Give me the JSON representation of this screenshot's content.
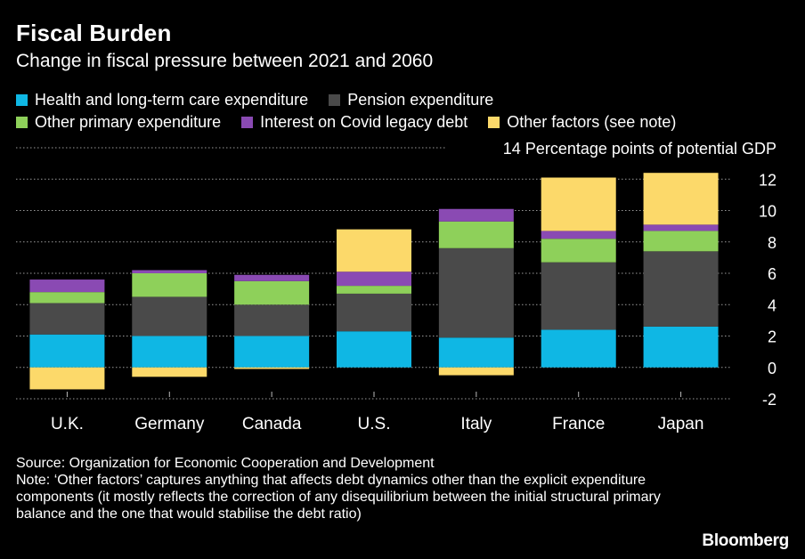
{
  "header": {
    "title": "Fiscal Burden",
    "subtitle": "Change in fiscal pressure between 2021 and 2060"
  },
  "legend": {
    "rows": [
      [
        {
          "label": "Health and long-term care expenditure",
          "color": "#0fb7e4"
        },
        {
          "label": "Pension expenditure",
          "color": "#4a4a4a"
        }
      ],
      [
        {
          "label": "Other primary expenditure",
          "color": "#8ed05a"
        },
        {
          "label": "Interest on Covid legacy debt",
          "color": "#8a4ab3"
        },
        {
          "label": "Other factors (see note)",
          "color": "#fcd96a"
        }
      ]
    ]
  },
  "chart_data": {
    "type": "bar",
    "stacked": true,
    "unit_label": "Percentage points of potential GDP",
    "ylim": [
      -2,
      14
    ],
    "yticks": [
      -2,
      0,
      2,
      4,
      6,
      8,
      10,
      12,
      14
    ],
    "grid": true,
    "categories": [
      "U.K.",
      "Germany",
      "Canada",
      "U.S.",
      "Italy",
      "France",
      "Japan"
    ],
    "series": [
      {
        "name": "Health and long-term care expenditure",
        "color": "#0fb7e4",
        "values": [
          2.1,
          2.0,
          2.0,
          2.3,
          1.9,
          2.4,
          2.6
        ]
      },
      {
        "name": "Pension expenditure",
        "color": "#4a4a4a",
        "values": [
          2.0,
          2.5,
          2.0,
          2.4,
          5.7,
          4.3,
          4.8
        ]
      },
      {
        "name": "Other primary expenditure",
        "color": "#8ed05a",
        "values": [
          0.7,
          1.5,
          1.5,
          0.5,
          1.7,
          1.5,
          1.3
        ]
      },
      {
        "name": "Interest on Covid legacy debt",
        "color": "#8a4ab3",
        "values": [
          0.8,
          0.2,
          0.4,
          0.9,
          0.8,
          0.5,
          0.4
        ]
      },
      {
        "name": "Other factors (see note)",
        "color": "#fcd96a",
        "values": [
          -1.4,
          -0.6,
          -0.1,
          2.7,
          -0.5,
          3.4,
          3.3
        ]
      }
    ]
  },
  "footer": {
    "source": "Source: Organization for Economic Cooperation and Development",
    "note": "Note: ‘Other factors’ captures anything that affects debt dynamics other than the explicit expenditure components (it mostly reflects the correction of any disequilibrium between the initial structural primary balance and the one that would stabilise the debt ratio)",
    "brand": "Bloomberg"
  }
}
